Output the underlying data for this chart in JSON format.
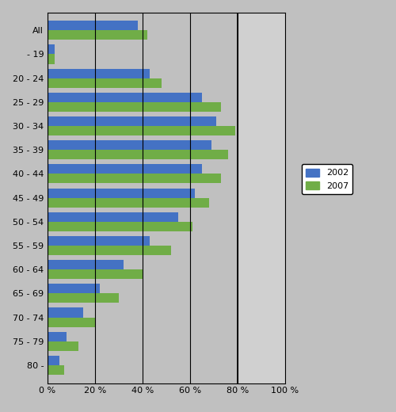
{
  "categories": [
    "All",
    "- 19",
    "20 - 24",
    "25 - 29",
    "30 - 34",
    "35 - 39",
    "40 - 44",
    "45 - 49",
    "50 - 54",
    "55 - 59",
    "60 - 64",
    "65 - 69",
    "70 - 74",
    "75 - 79",
    "80 -"
  ],
  "values_2002": [
    38,
    3,
    43,
    65,
    71,
    69,
    65,
    62,
    55,
    43,
    32,
    22,
    15,
    8,
    5
  ],
  "values_2007": [
    42,
    3,
    48,
    73,
    79,
    76,
    73,
    68,
    61,
    52,
    40,
    30,
    20,
    13,
    7
  ],
  "color_2002": "#4472C4",
  "color_2007": "#70AD47",
  "background_color": "#C0C0C0",
  "plot_bg_color": "#C0C0C0",
  "outer_bg_color": "#C0C0C0",
  "lighter_region_color": "#D8D8D8",
  "xlim": [
    0,
    100
  ],
  "xticks": [
    0,
    20,
    40,
    60,
    80,
    100
  ],
  "xticklabels": [
    "0 %",
    "20 %",
    "40 %",
    "60 %",
    "80 %",
    "100 %"
  ],
  "legend_labels": [
    "2002",
    "2007"
  ],
  "bar_height": 0.4,
  "vlines": [
    20,
    40,
    60,
    80
  ],
  "right_vline": 80
}
